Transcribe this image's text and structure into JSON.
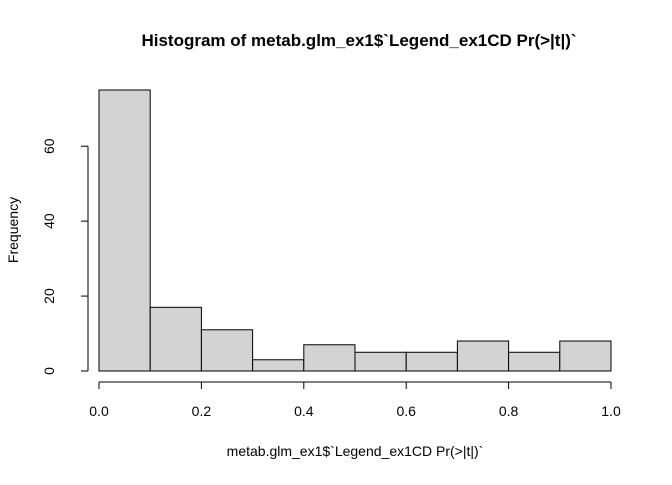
{
  "chart_data": {
    "type": "bar",
    "title": "Histogram of metab.glm_ex1$`Legend_ex1CD Pr(>|t|)`",
    "xlabel": "metab.glm_ex1$`Legend_ex1CD Pr(>|t|)`",
    "ylabel": "Frequency",
    "bins": [
      {
        "x0": 0.0,
        "x1": 0.1,
        "count": 75
      },
      {
        "x0": 0.1,
        "x1": 0.2,
        "count": 17
      },
      {
        "x0": 0.2,
        "x1": 0.3,
        "count": 11
      },
      {
        "x0": 0.3,
        "x1": 0.4,
        "count": 3
      },
      {
        "x0": 0.4,
        "x1": 0.5,
        "count": 7
      },
      {
        "x0": 0.5,
        "x1": 0.6,
        "count": 5
      },
      {
        "x0": 0.6,
        "x1": 0.7,
        "count": 5
      },
      {
        "x0": 0.7,
        "x1": 0.8,
        "count": 8
      },
      {
        "x0": 0.8,
        "x1": 0.9,
        "count": 5
      },
      {
        "x0": 0.9,
        "x1": 1.0,
        "count": 8
      }
    ],
    "xlim": [
      0,
      1.0
    ],
    "ylim": [
      0,
      75
    ],
    "xticks": [
      {
        "value": 0.0,
        "label": "0.0"
      },
      {
        "value": 0.2,
        "label": "0.2"
      },
      {
        "value": 0.4,
        "label": "0.4"
      },
      {
        "value": 0.6,
        "label": "0.6"
      },
      {
        "value": 0.8,
        "label": "0.8"
      },
      {
        "value": 1.0,
        "label": "1.0"
      }
    ],
    "yticks": [
      {
        "value": 0,
        "label": "0"
      },
      {
        "value": 20,
        "label": "20"
      },
      {
        "value": 40,
        "label": "40"
      },
      {
        "value": 60,
        "label": "60"
      }
    ],
    "bar_fill": "#d3d3d3",
    "bar_stroke": "#000000",
    "grid": false,
    "legend": "none"
  }
}
